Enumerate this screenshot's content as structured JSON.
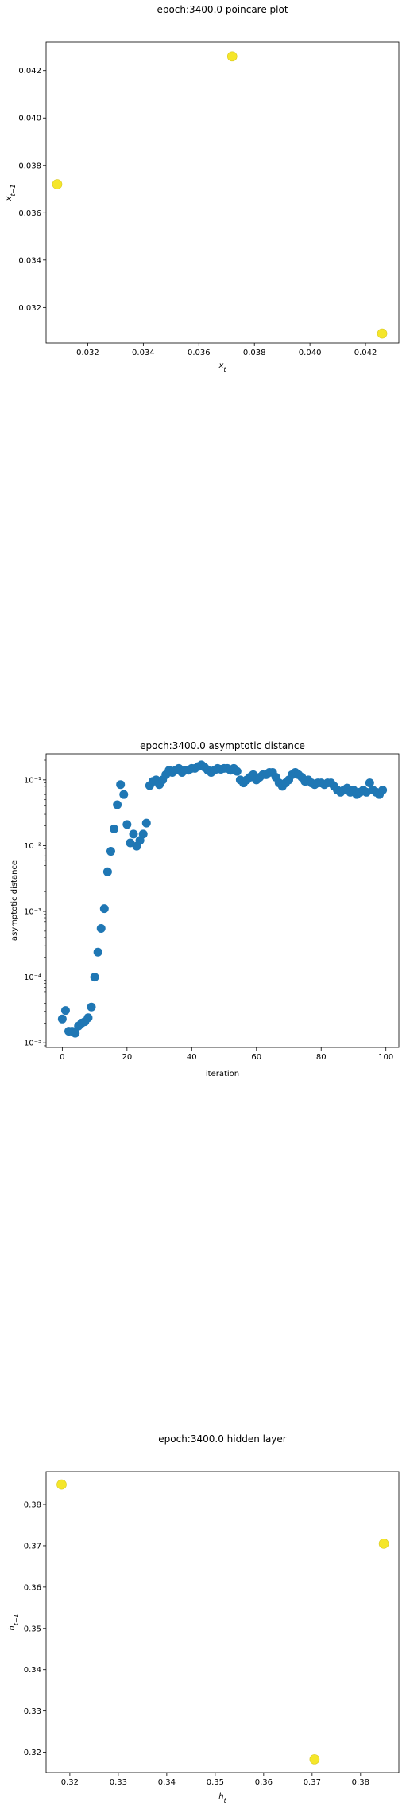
{
  "chart_data": [
    {
      "type": "scatter",
      "title": "epoch:3400.0 poincare plot",
      "xlabel": "x_t",
      "ylabel": "x_{t-1}",
      "xlim": [
        0.0305,
        0.0432
      ],
      "ylim": [
        0.0305,
        0.0432
      ],
      "xticks": [
        "0.032",
        "0.034",
        "0.036",
        "0.038",
        "0.040",
        "0.042"
      ],
      "xtick_values": [
        0.032,
        0.034,
        0.036,
        0.038,
        0.04,
        0.042
      ],
      "yticks": [
        "0.032",
        "0.034",
        "0.036",
        "0.038",
        "0.040",
        "0.042"
      ],
      "ytick_values": [
        0.032,
        0.034,
        0.036,
        0.038,
        0.04,
        0.042
      ],
      "marker_color": "#f5e62a",
      "points": [
        {
          "x": 0.0309,
          "y": 0.0372
        },
        {
          "x": 0.0372,
          "y": 0.0426
        },
        {
          "x": 0.0426,
          "y": 0.0309
        }
      ]
    },
    {
      "type": "scatter",
      "title": "epoch:3400.0 asymptotic distance",
      "xlabel": "iteration",
      "ylabel": "asymptotic distance",
      "yscale": "log",
      "xlim": [
        -5,
        104
      ],
      "ylim": [
        8.5e-06,
        0.25
      ],
      "xticks": [
        "0",
        "20",
        "40",
        "60",
        "80",
        "100"
      ],
      "xtick_values": [
        0,
        20,
        40,
        60,
        80,
        100
      ],
      "yticks": [
        "10⁻⁵",
        "10⁻⁴",
        "10⁻³",
        "10⁻²",
        "10⁻¹"
      ],
      "ytick_values": [
        1e-05,
        0.0001,
        0.001,
        0.01,
        0.1
      ],
      "marker_color": "#1f77b4",
      "x": [
        0,
        1,
        2,
        3,
        4,
        5,
        6,
        7,
        8,
        9,
        10,
        11,
        12,
        13,
        14,
        15,
        16,
        17,
        18,
        19,
        20,
        21,
        22,
        23,
        24,
        25,
        26,
        27,
        28,
        29,
        30,
        31,
        32,
        33,
        34,
        35,
        36,
        37,
        38,
        39,
        40,
        41,
        42,
        43,
        44,
        45,
        46,
        47,
        48,
        49,
        50,
        51,
        52,
        53,
        54,
        55,
        56,
        57,
        58,
        59,
        60,
        61,
        62,
        63,
        64,
        65,
        66,
        67,
        68,
        69,
        70,
        71,
        72,
        73,
        74,
        75,
        76,
        77,
        78,
        79,
        80,
        81,
        82,
        83,
        84,
        85,
        86,
        87,
        88,
        89,
        90,
        91,
        92,
        93,
        94,
        95,
        96,
        97,
        98,
        99
      ],
      "y": [
        2.3e-05,
        3.1e-05,
        1.5e-05,
        1.5e-05,
        1.4e-05,
        1.8e-05,
        2e-05,
        2.1e-05,
        2.4e-05,
        3.5e-05,
        0.0001,
        0.00024,
        0.00055,
        0.0011,
        0.004,
        0.0082,
        0.018,
        0.042,
        0.085,
        0.06,
        0.021,
        0.011,
        0.015,
        0.0098,
        0.012,
        0.015,
        0.022,
        0.082,
        0.095,
        0.1,
        0.085,
        0.1,
        0.12,
        0.14,
        0.13,
        0.14,
        0.15,
        0.13,
        0.14,
        0.14,
        0.15,
        0.15,
        0.16,
        0.17,
        0.155,
        0.14,
        0.13,
        0.14,
        0.15,
        0.145,
        0.15,
        0.15,
        0.14,
        0.15,
        0.135,
        0.1,
        0.09,
        0.1,
        0.11,
        0.12,
        0.1,
        0.11,
        0.12,
        0.12,
        0.13,
        0.13,
        0.11,
        0.09,
        0.08,
        0.09,
        0.1,
        0.12,
        0.13,
        0.12,
        0.11,
        0.095,
        0.1,
        0.09,
        0.085,
        0.09,
        0.09,
        0.085,
        0.09,
        0.09,
        0.08,
        0.07,
        0.065,
        0.07,
        0.075,
        0.065,
        0.07,
        0.06,
        0.065,
        0.07,
        0.065,
        0.09,
        0.07,
        0.065,
        0.06,
        0.07
      ]
    },
    {
      "type": "scatter",
      "title": "epoch:3400.0 hidden layer",
      "xlabel": "h_t",
      "ylabel": "h_{t-1}",
      "xlim": [
        0.3151,
        0.3879
      ],
      "ylim": [
        0.3151,
        0.3879
      ],
      "xticks": [
        "0.32",
        "0.33",
        "0.34",
        "0.35",
        "0.36",
        "0.37",
        "0.38"
      ],
      "xtick_values": [
        0.32,
        0.33,
        0.34,
        0.35,
        0.36,
        0.37,
        0.38
      ],
      "yticks": [
        "0.32",
        "0.33",
        "0.34",
        "0.35",
        "0.36",
        "0.37",
        "0.38"
      ],
      "ytick_values": [
        0.32,
        0.33,
        0.34,
        0.35,
        0.36,
        0.37,
        0.38
      ],
      "marker_color": "#f5e62a",
      "points": [
        {
          "x": 0.3183,
          "y": 0.3848
        },
        {
          "x": 0.3705,
          "y": 0.3183
        },
        {
          "x": 0.3848,
          "y": 0.3705
        }
      ]
    }
  ]
}
